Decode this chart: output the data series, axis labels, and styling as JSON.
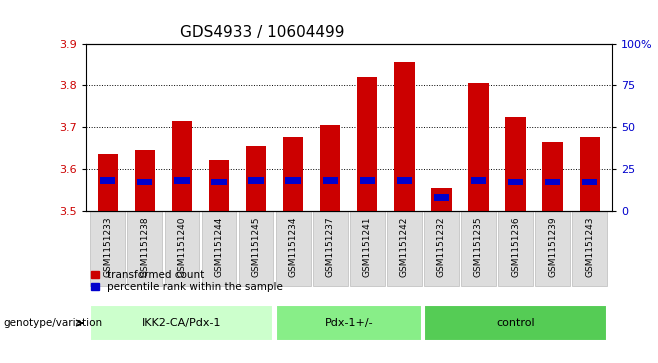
{
  "title": "GDS4933 / 10604499",
  "samples": [
    "GSM1151233",
    "GSM1151238",
    "GSM1151240",
    "GSM1151244",
    "GSM1151245",
    "GSM1151234",
    "GSM1151237",
    "GSM1151241",
    "GSM1151242",
    "GSM1151232",
    "GSM1151235",
    "GSM1151236",
    "GSM1151239",
    "GSM1151243"
  ],
  "groups": [
    {
      "label": "IKK2-CA/Pdx-1",
      "count": 5,
      "color": "#ccffcc"
    },
    {
      "label": "Pdx-1+/-",
      "count": 4,
      "color": "#88ee88"
    },
    {
      "label": "control",
      "count": 5,
      "color": "#55cc55"
    }
  ],
  "red_values": [
    3.635,
    3.645,
    3.715,
    3.62,
    3.655,
    3.675,
    3.705,
    3.82,
    3.855,
    3.555,
    3.805,
    3.725,
    3.665,
    3.675
  ],
  "blue_values": [
    18,
    17,
    18,
    17,
    18,
    18,
    18,
    18,
    18,
    8,
    18,
    17,
    17,
    17
  ],
  "bar_bottom": 3.5,
  "ylim_left": [
    3.5,
    3.9
  ],
  "ylim_right": [
    0,
    100
  ],
  "right_tick_labels": [
    "0",
    "25",
    "50",
    "75",
    "100%"
  ],
  "right_ticks": [
    0,
    25,
    50,
    75,
    100
  ],
  "red_color": "#cc0000",
  "blue_color": "#0000cc",
  "bar_width": 0.55,
  "legend_red": "transformed count",
  "legend_blue": "percentile rank within the sample",
  "genotype_label": "genotype/variation",
  "title_fontsize": 11,
  "right_axis_color": "#0000cc",
  "grey_bg": "#dddddd"
}
